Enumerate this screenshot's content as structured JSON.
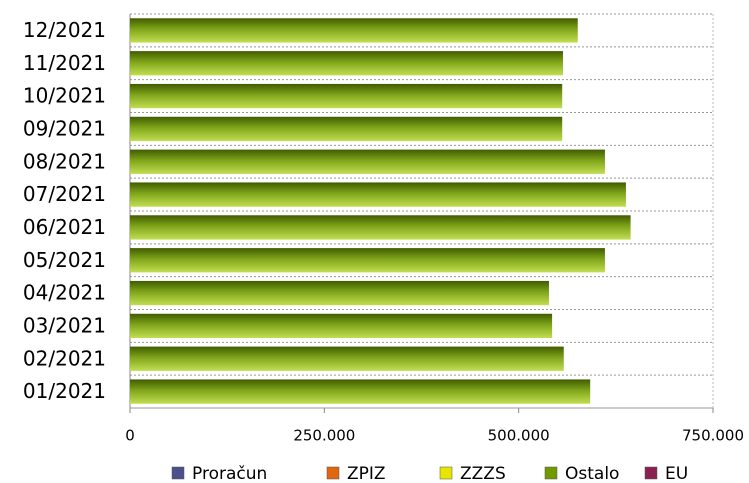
{
  "chart_data": {
    "type": "bar",
    "orientation": "horizontal",
    "stacked": true,
    "categories": [
      "12/2021",
      "11/2021",
      "10/2021",
      "09/2021",
      "08/2021",
      "07/2021",
      "06/2021",
      "05/2021",
      "04/2021",
      "03/2021",
      "02/2021",
      "01/2021"
    ],
    "series": [
      {
        "name": "Proračun",
        "color": "#4b4f8c",
        "values": [
          0,
          0,
          0,
          0,
          0,
          0,
          0,
          0,
          0,
          0,
          0,
          0
        ]
      },
      {
        "name": "ZPIZ",
        "color": "#e2650f",
        "values": [
          0,
          0,
          0,
          0,
          0,
          0,
          0,
          0,
          0,
          0,
          0,
          0
        ]
      },
      {
        "name": "ZZZS",
        "color": "#e6e600",
        "values": [
          0,
          0,
          0,
          0,
          0,
          0,
          0,
          0,
          0,
          0,
          0,
          0
        ]
      },
      {
        "name": "Ostalo",
        "color": "#6f9a00",
        "values": [
          576000,
          557000,
          556000,
          556000,
          611000,
          638000,
          644000,
          611000,
          539000,
          543000,
          558000,
          592000
        ]
      },
      {
        "name": "EU",
        "color": "#8c1f52",
        "values": [
          0,
          0,
          0,
          0,
          0,
          0,
          0,
          0,
          0,
          0,
          0,
          0
        ]
      }
    ],
    "xlim": [
      0,
      750000
    ],
    "xticks": [
      0,
      {
        "value": 250000,
        "label": "250.000"
      },
      {
        "value": 500000,
        "label": "500.000"
      },
      {
        "value": 750000,
        "label": "750.000"
      }
    ],
    "legend": "bottom"
  }
}
